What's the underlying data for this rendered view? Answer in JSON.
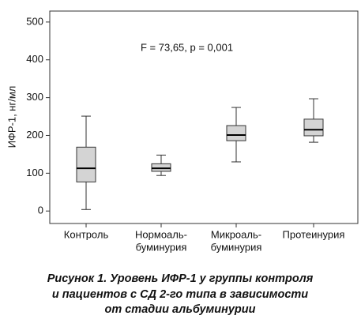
{
  "chart_data": {
    "type": "box",
    "annotation": "F = 73,65, p = 0,001",
    "y_label": "ИФР-1, нг/мл",
    "categories": [
      [
        "Контроль"
      ],
      [
        "Нормоаль-",
        "буминурия"
      ],
      [
        "Микроаль-",
        "буминурия"
      ],
      [
        "Протеинурия"
      ]
    ],
    "boxes": [
      {
        "min": 4,
        "q1": 77,
        "median": 113,
        "q3": 169,
        "max": 251
      },
      {
        "min": 94,
        "q1": 105,
        "median": 113,
        "q3": 125,
        "max": 148
      },
      {
        "min": 130,
        "q1": 186,
        "median": 201,
        "q3": 226,
        "max": 274
      },
      {
        "min": 182,
        "q1": 199,
        "median": 215,
        "q3": 243,
        "max": 297
      }
    ],
    "color": "#d4d4d4",
    "ylim": [
      -33,
      529
    ],
    "yticks": [
      0,
      100,
      200,
      300,
      400,
      500
    ],
    "caption": [
      "Рисунок 1.  Уровень ИФР-1 у группы контроля",
      "и пациентов с СД 2-го типа в зависимости",
      "от стадии альбуминурии"
    ]
  }
}
